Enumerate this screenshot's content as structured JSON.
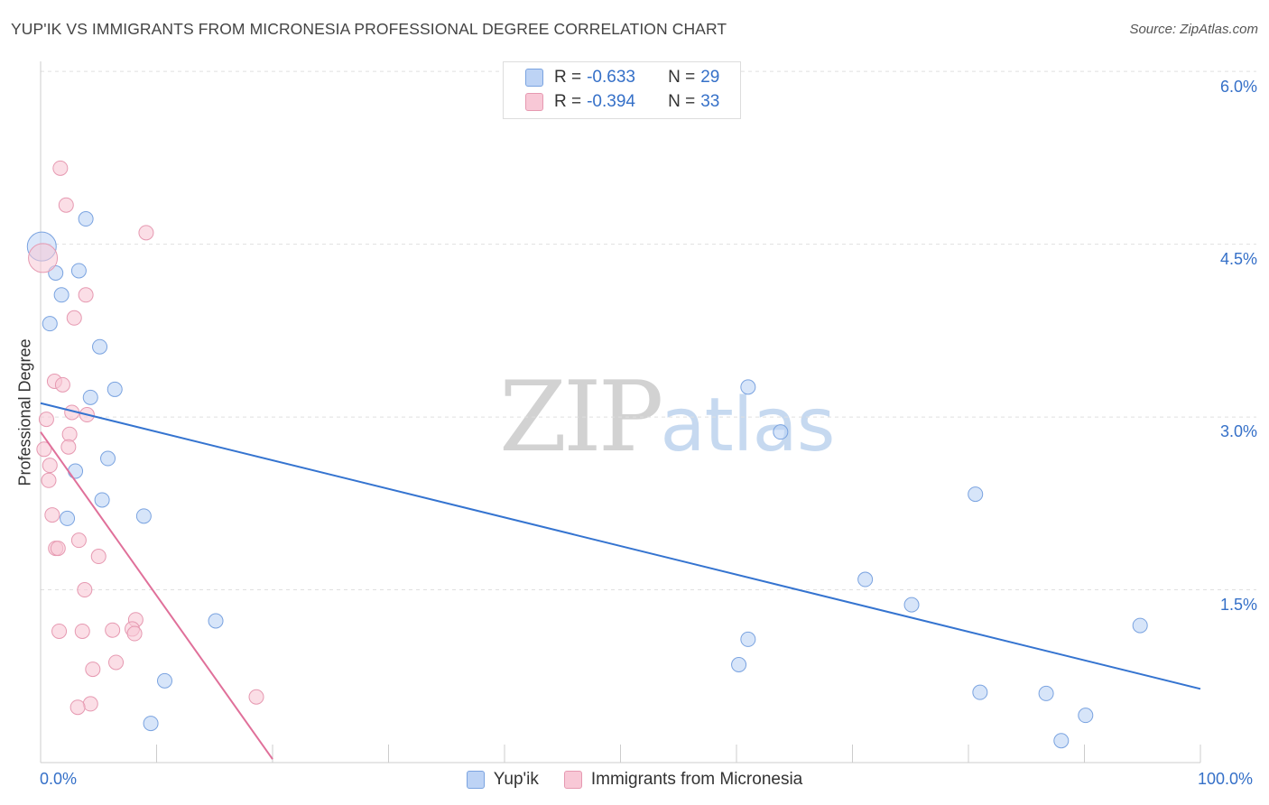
{
  "title": "YUP'IK VS IMMIGRANTS FROM MICRONESIA PROFESSIONAL DEGREE CORRELATION CHART",
  "source": "Source: ZipAtlas.com",
  "watermark": {
    "zip": "ZIP",
    "atlas": "atlas"
  },
  "legend": {
    "r_label": "R =",
    "n_label": "N =",
    "series": [
      {
        "r": "-0.633",
        "n": "29"
      },
      {
        "r": "-0.394",
        "n": "33"
      }
    ]
  },
  "colors": {
    "blue_fill": "#bdd3f5",
    "blue_stroke": "#7aa3e0",
    "blue_line": "#3574d0",
    "pink_fill": "#f8c8d6",
    "pink_stroke": "#e699b1",
    "pink_line": "#e0709a",
    "grid": "#e0e0e0",
    "tick_text": "#3570c8"
  },
  "chart_data": {
    "type": "scatter",
    "title": "YUP'IK VS IMMIGRANTS FROM MICRONESIA PROFESSIONAL DEGREE CORRELATION CHART",
    "xlabel": "",
    "ylabel": "Professional Degree",
    "xlim": [
      0,
      100
    ],
    "ylim": [
      0,
      6.3
    ],
    "x_tick_labels": [
      "0.0%",
      "100.0%"
    ],
    "y_ticks": [
      1.5,
      3.0,
      4.5,
      6.0
    ],
    "y_tick_labels": [
      "1.5%",
      "3.0%",
      "4.5%",
      "6.0%"
    ],
    "grid": true,
    "series": [
      {
        "name": "Yup'ik",
        "color": "blue",
        "r": -0.633,
        "n": 29,
        "trend": {
          "x": [
            0,
            100
          ],
          "y": [
            3.12,
            0.64
          ]
        },
        "points": [
          {
            "x": 0.1,
            "y": 4.48,
            "big": true
          },
          {
            "x": 3.9,
            "y": 4.72
          },
          {
            "x": 1.3,
            "y": 4.25
          },
          {
            "x": 3.3,
            "y": 4.27
          },
          {
            "x": 1.8,
            "y": 4.06
          },
          {
            "x": 0.8,
            "y": 3.81
          },
          {
            "x": 5.1,
            "y": 3.61
          },
          {
            "x": 6.4,
            "y": 3.24
          },
          {
            "x": 4.3,
            "y": 3.17
          },
          {
            "x": 5.8,
            "y": 2.64
          },
          {
            "x": 3.0,
            "y": 2.53
          },
          {
            "x": 5.3,
            "y": 2.28
          },
          {
            "x": 2.3,
            "y": 2.12
          },
          {
            "x": 8.9,
            "y": 2.14
          },
          {
            "x": 15.1,
            "y": 1.23
          },
          {
            "x": 10.7,
            "y": 0.71
          },
          {
            "x": 9.5,
            "y": 0.34
          },
          {
            "x": 60.2,
            "y": 0.85
          },
          {
            "x": 61.0,
            "y": 1.07
          },
          {
            "x": 61.0,
            "y": 3.26
          },
          {
            "x": 63.8,
            "y": 2.87
          },
          {
            "x": 71.1,
            "y": 1.59
          },
          {
            "x": 75.1,
            "y": 1.37
          },
          {
            "x": 80.6,
            "y": 2.33
          },
          {
            "x": 81.0,
            "y": 0.61
          },
          {
            "x": 86.7,
            "y": 0.6
          },
          {
            "x": 88.0,
            "y": 0.19
          },
          {
            "x": 90.1,
            "y": 0.41
          },
          {
            "x": 94.8,
            "y": 1.19
          }
        ]
      },
      {
        "name": "Immigrants from Micronesia",
        "color": "pink",
        "r": -0.394,
        "n": 33,
        "trend": {
          "x": [
            0,
            20
          ],
          "y": [
            2.87,
            0.03
          ]
        },
        "points": [
          {
            "x": 0.2,
            "y": 4.38,
            "big": true
          },
          {
            "x": 1.7,
            "y": 5.16
          },
          {
            "x": 2.2,
            "y": 4.84
          },
          {
            "x": 9.1,
            "y": 4.6
          },
          {
            "x": 3.9,
            "y": 4.06
          },
          {
            "x": 2.9,
            "y": 3.86
          },
          {
            "x": 1.2,
            "y": 3.31
          },
          {
            "x": 1.9,
            "y": 3.28
          },
          {
            "x": 2.7,
            "y": 3.04
          },
          {
            "x": 4.0,
            "y": 3.02
          },
          {
            "x": 0.5,
            "y": 2.98
          },
          {
            "x": 2.5,
            "y": 2.85
          },
          {
            "x": 2.4,
            "y": 2.74
          },
          {
            "x": 0.3,
            "y": 2.72
          },
          {
            "x": 0.8,
            "y": 2.58
          },
          {
            "x": 0.7,
            "y": 2.45
          },
          {
            "x": 1.0,
            "y": 2.15
          },
          {
            "x": 3.3,
            "y": 1.93
          },
          {
            "x": 1.3,
            "y": 1.86
          },
          {
            "x": 1.5,
            "y": 1.86
          },
          {
            "x": 5.0,
            "y": 1.79
          },
          {
            "x": 3.8,
            "y": 1.5
          },
          {
            "x": 8.2,
            "y": 1.24
          },
          {
            "x": 1.6,
            "y": 1.14
          },
          {
            "x": 3.6,
            "y": 1.14
          },
          {
            "x": 6.2,
            "y": 1.15
          },
          {
            "x": 7.9,
            "y": 1.16
          },
          {
            "x": 8.1,
            "y": 1.12
          },
          {
            "x": 6.5,
            "y": 0.87
          },
          {
            "x": 4.5,
            "y": 0.81
          },
          {
            "x": 4.3,
            "y": 0.51
          },
          {
            "x": 3.2,
            "y": 0.48
          },
          {
            "x": 18.6,
            "y": 0.57
          }
        ]
      }
    ],
    "legend": [
      "Yup'ik",
      "Immigrants from Micronesia"
    ]
  }
}
